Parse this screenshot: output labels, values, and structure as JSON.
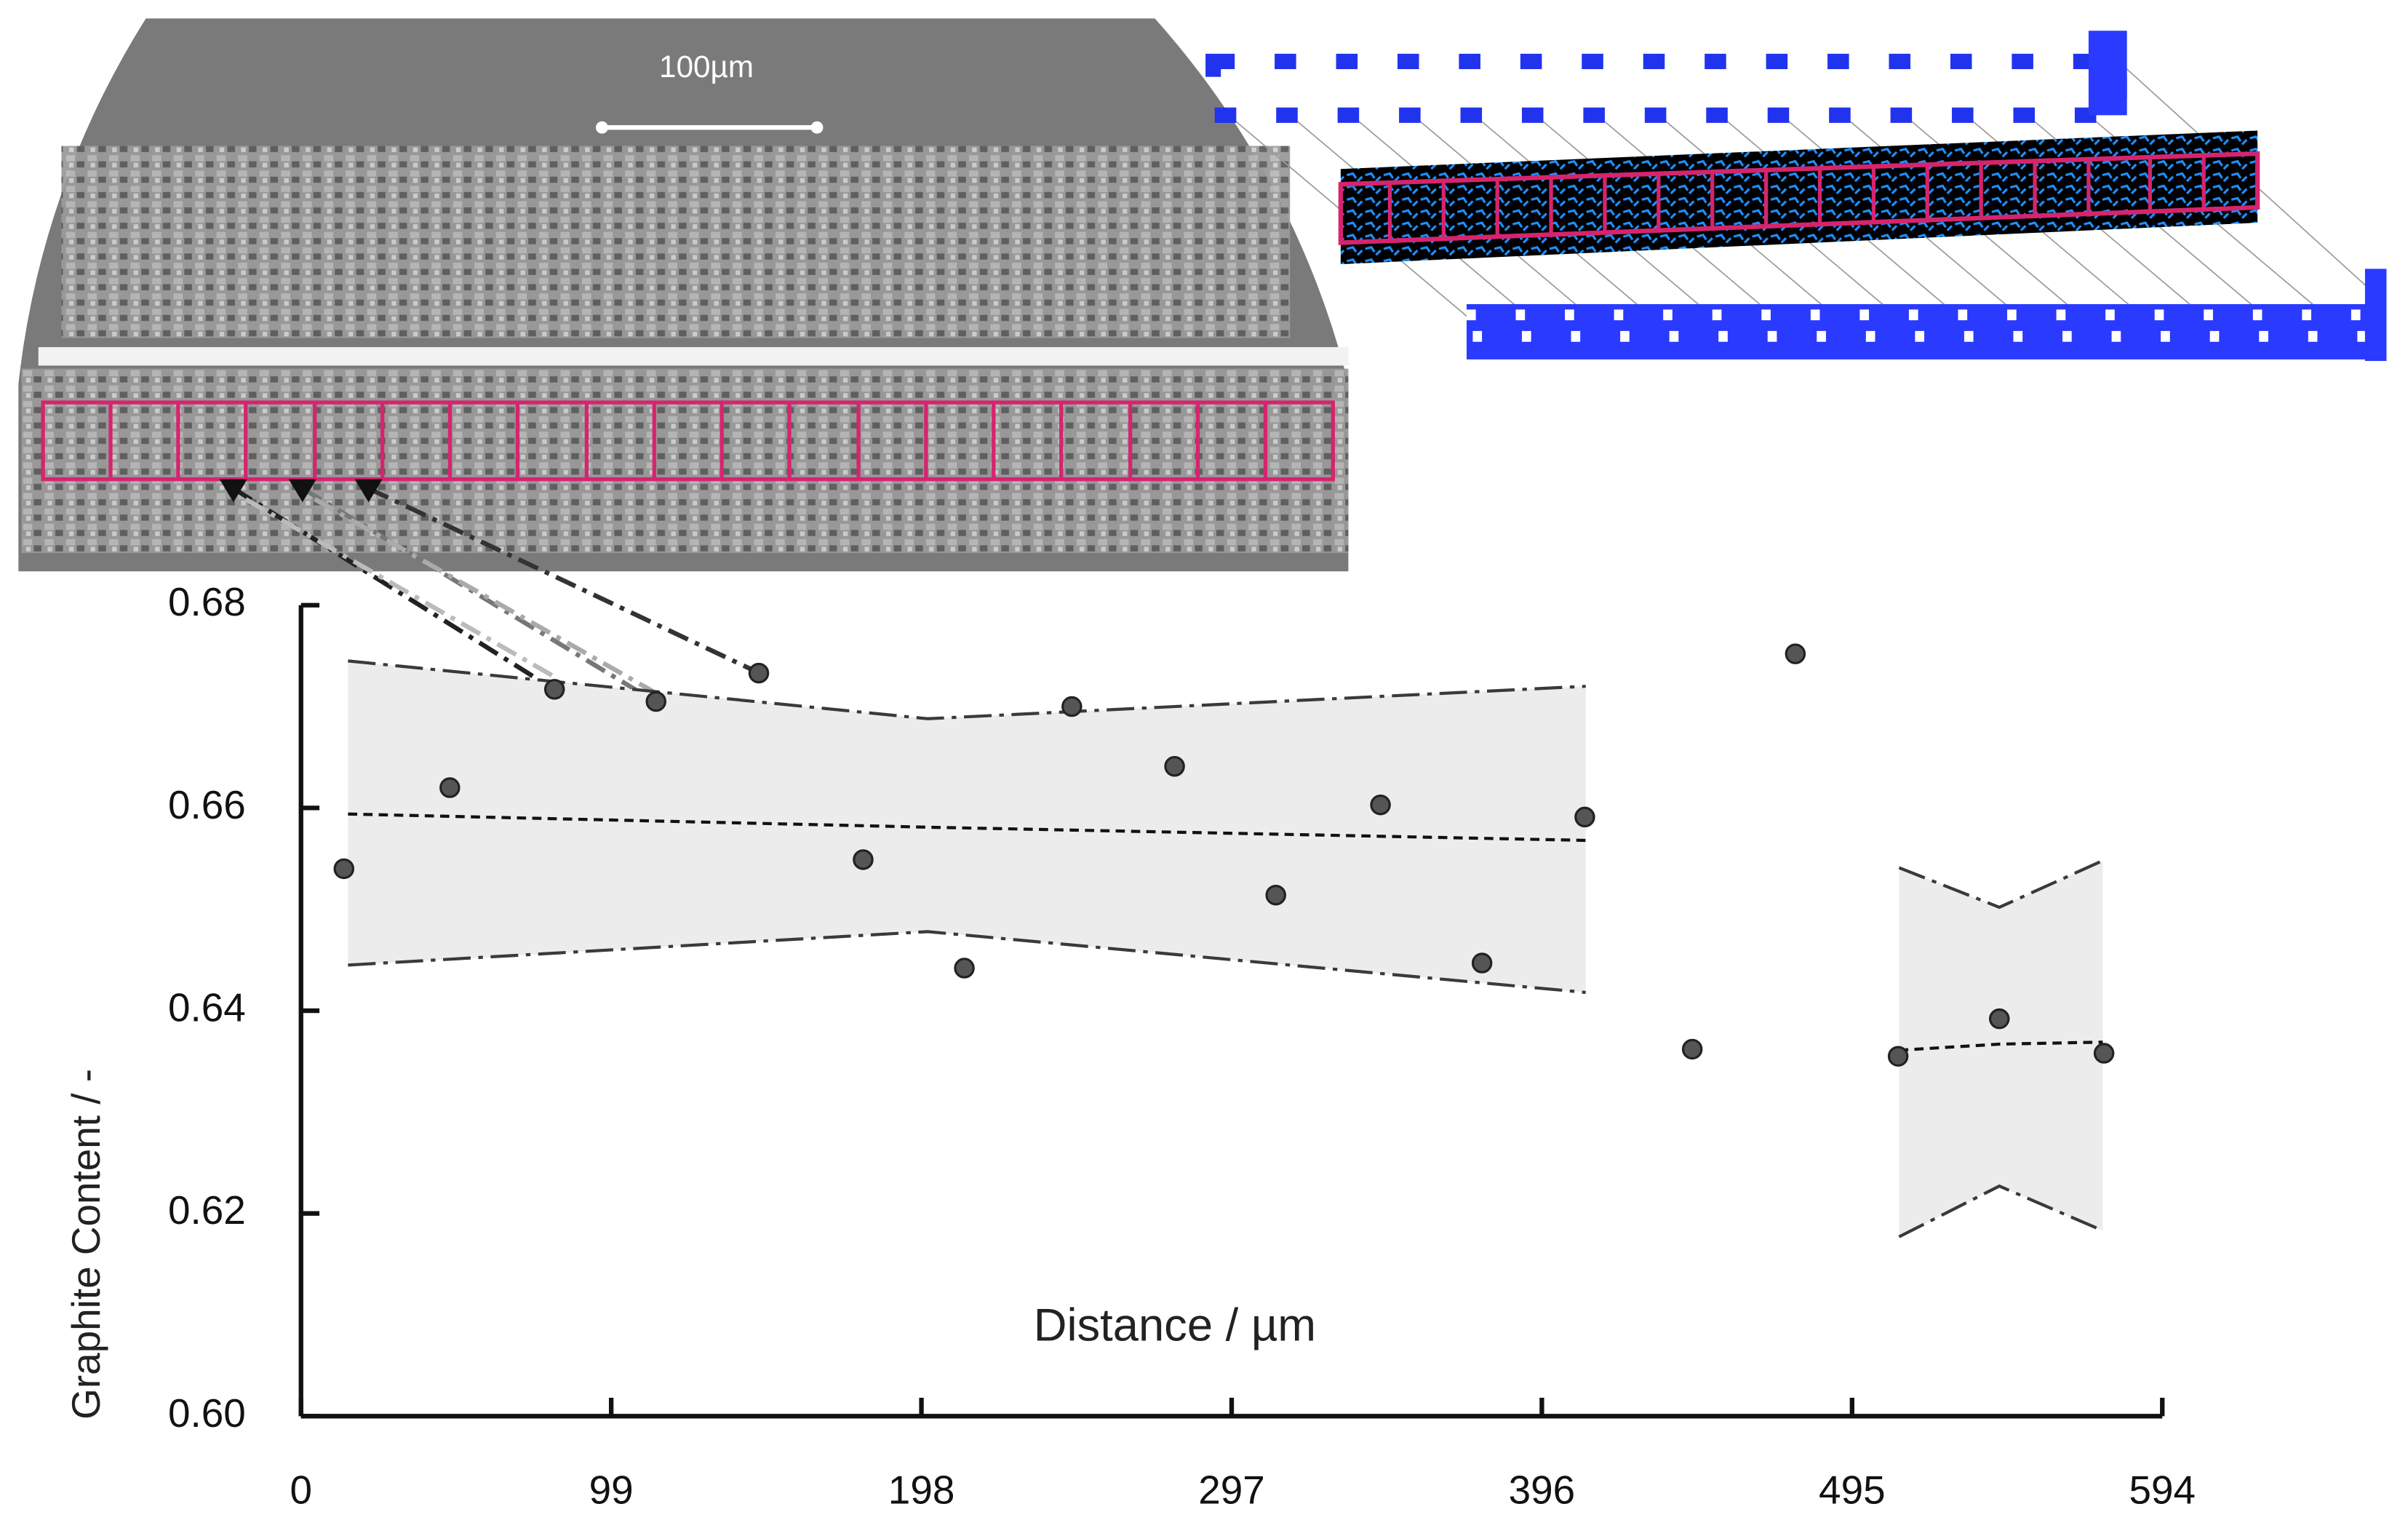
{
  "chart_data": {
    "type": "scatter",
    "scale_bar_label": "100µm",
    "x_label": "Distance / µm",
    "y_label": "Graphite Content  / -",
    "xlim": [
      0,
      594
    ],
    "ylim": [
      0.6,
      0.68
    ],
    "xticks": [
      0,
      99,
      198,
      297,
      396,
      495,
      594
    ],
    "yticks": [
      {
        "value": 0.6,
        "label": "0.60"
      },
      0.62,
      0.64,
      0.66,
      0.68
    ],
    "color": "#555555",
    "x": [
      13.7,
      47.5,
      80.9,
      113.3,
      146.1,
      179.4,
      211.7,
      246.0,
      278.8,
      311.1,
      344.5,
      376.9,
      409.7,
      444.0,
      476.9,
      509.7,
      542.0,
      575.4
    ],
    "values": [
      0.654,
      0.662,
      0.6717,
      0.6705,
      0.6733,
      0.6549,
      0.6442,
      0.67,
      0.6641,
      0.6514,
      0.6603,
      0.6447,
      0.6591,
      0.6362,
      0.6752,
      0.6355,
      0.6392,
      0.6358
    ],
    "fits": [
      {
        "x": [
          15,
          200,
          410
        ],
        "mean": [
          0.6594,
          0.6581,
          0.6568
        ],
        "upper": [
          0.6745,
          0.6688,
          0.672
        ],
        "lower": [
          0.6445,
          0.6478,
          0.6418
        ]
      },
      {
        "x": [
          510,
          542,
          575
        ],
        "mean": [
          0.6361,
          0.6367,
          0.6369
        ],
        "upper": [
          0.6541,
          0.6502,
          0.6548
        ],
        "lower": [
          0.6177,
          0.6227,
          0.6183
        ]
      }
    ]
  }
}
